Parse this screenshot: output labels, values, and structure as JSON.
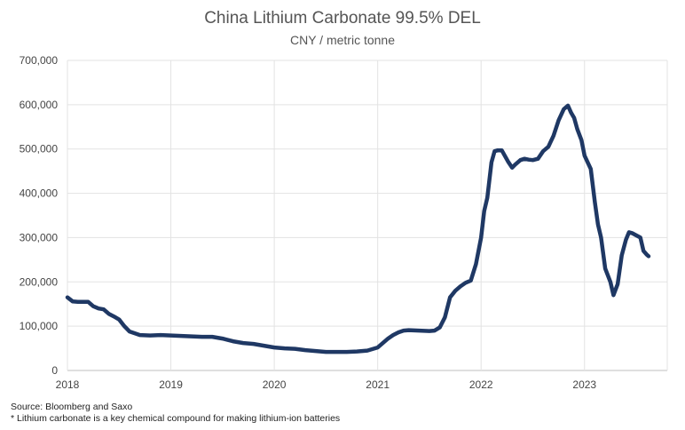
{
  "chart_data": {
    "type": "line",
    "title": "China Lithium Carbonate 99.5% DEL",
    "subtitle": "CNY / metric tonne",
    "xlabel": "",
    "ylabel": "",
    "xlim": [
      2018,
      2023.8
    ],
    "ylim": [
      0,
      700000
    ],
    "grid": true,
    "y_ticks": [
      0,
      100000,
      200000,
      300000,
      400000,
      500000,
      600000,
      700000
    ],
    "y_tick_labels": [
      "0",
      "100,000",
      "200,000",
      "300,000",
      "400,000",
      "500,000",
      "600,000",
      "700,000"
    ],
    "x_ticks": [
      2018,
      2019,
      2020,
      2021,
      2022,
      2023
    ],
    "x_tick_labels": [
      "2018",
      "2019",
      "2020",
      "2021",
      "2022",
      "2023"
    ],
    "color": "#1f3864",
    "series": [
      {
        "name": "China Lithium Carbonate 99.5% DEL",
        "x": [
          2018.0,
          2018.05,
          2018.1,
          2018.2,
          2018.25,
          2018.3,
          2018.35,
          2018.4,
          2018.45,
          2018.5,
          2018.55,
          2018.6,
          2018.65,
          2018.7,
          2018.8,
          2018.9,
          2019.0,
          2019.1,
          2019.2,
          2019.3,
          2019.4,
          2019.5,
          2019.6,
          2019.7,
          2019.8,
          2019.9,
          2020.0,
          2020.1,
          2020.2,
          2020.3,
          2020.4,
          2020.5,
          2020.6,
          2020.7,
          2020.8,
          2020.9,
          2021.0,
          2021.05,
          2021.1,
          2021.15,
          2021.2,
          2021.25,
          2021.3,
          2021.4,
          2021.5,
          2021.55,
          2021.6,
          2021.65,
          2021.7,
          2021.75,
          2021.8,
          2021.85,
          2021.9,
          2021.95,
          2022.0,
          2022.03,
          2022.06,
          2022.1,
          2022.13,
          2022.16,
          2022.2,
          2022.26,
          2022.3,
          2022.33,
          2022.38,
          2022.42,
          2022.46,
          2022.5,
          2022.55,
          2022.6,
          2022.65,
          2022.7,
          2022.75,
          2022.8,
          2022.84,
          2022.87,
          2022.9,
          2022.93,
          2022.97,
          2023.0,
          2023.03,
          2023.06,
          2023.1,
          2023.13,
          2023.16,
          2023.2,
          2023.25,
          2023.28,
          2023.32,
          2023.36,
          2023.4,
          2023.43,
          2023.46,
          2023.5,
          2023.54,
          2023.57,
          2023.6,
          2023.62
        ],
        "values": [
          165000,
          156000,
          155000,
          155000,
          145000,
          140000,
          138000,
          128000,
          122000,
          115000,
          100000,
          88000,
          84000,
          80000,
          79000,
          80000,
          79000,
          78000,
          77000,
          76000,
          76000,
          72000,
          66000,
          62000,
          60000,
          56000,
          52000,
          50000,
          49000,
          46000,
          44000,
          42000,
          42000,
          42000,
          43000,
          45000,
          52000,
          62000,
          72000,
          80000,
          86000,
          90000,
          91000,
          90000,
          89000,
          90000,
          97000,
          120000,
          165000,
          180000,
          190000,
          198000,
          203000,
          240000,
          300000,
          360000,
          390000,
          470000,
          495000,
          497000,
          497000,
          472000,
          458000,
          465000,
          475000,
          478000,
          476000,
          475000,
          478000,
          495000,
          505000,
          530000,
          565000,
          590000,
          598000,
          582000,
          570000,
          545000,
          520000,
          485000,
          470000,
          455000,
          380000,
          330000,
          300000,
          230000,
          200000,
          170000,
          195000,
          260000,
          295000,
          312000,
          310000,
          305000,
          300000,
          270000,
          262000,
          258000
        ]
      }
    ]
  },
  "footer": {
    "source": "Source: Bloomberg and Saxo",
    "note": "* Lithium carbonate is a key chemical compound for making lithium-ion batteries"
  }
}
